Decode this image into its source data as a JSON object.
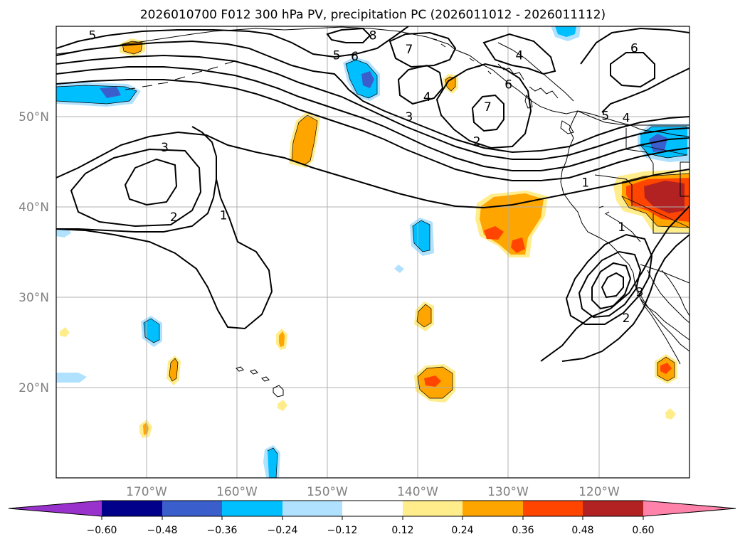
{
  "title": "2026010700 F012 300 hPa PV, precipitation PC (2026011012 - 2026011112)",
  "map": {
    "lon_range": [
      -180,
      -110
    ],
    "lat_range": [
      10,
      60
    ],
    "lon_ticks": [
      {
        "value": -170,
        "label": "170°W"
      },
      {
        "value": -160,
        "label": "160°W"
      },
      {
        "value": -150,
        "label": "150°W"
      },
      {
        "value": -140,
        "label": "140°W"
      },
      {
        "value": -130,
        "label": "130°W"
      },
      {
        "value": -120,
        "label": "120°W"
      }
    ],
    "lat_ticks": [
      {
        "value": 50,
        "label": "50°N"
      },
      {
        "value": 40,
        "label": "40°N"
      },
      {
        "value": 30,
        "label": "30°N"
      },
      {
        "value": 20,
        "label": "20°N"
      }
    ],
    "contour_labels": [
      {
        "text": "5",
        "lon": -176,
        "lat": 59
      },
      {
        "text": "8",
        "lon": -145,
        "lat": 59
      },
      {
        "text": "7",
        "lon": -141,
        "lat": 57.5
      },
      {
        "text": "6",
        "lon": -147,
        "lat": 56.7
      },
      {
        "text": "5",
        "lon": -149,
        "lat": 56.8
      },
      {
        "text": "4",
        "lon": -139,
        "lat": 52.2
      },
      {
        "text": "3",
        "lon": -141,
        "lat": 50
      },
      {
        "text": "2",
        "lon": -133.5,
        "lat": 47.3
      },
      {
        "text": "1",
        "lon": -121.5,
        "lat": 42.7
      },
      {
        "text": "4",
        "lon": -128.8,
        "lat": 56.8
      },
      {
        "text": "6",
        "lon": -130,
        "lat": 53.6
      },
      {
        "text": "7",
        "lon": -132.3,
        "lat": 51.1
      },
      {
        "text": "6",
        "lon": -116.1,
        "lat": 57.6
      },
      {
        "text": "5",
        "lon": -119.3,
        "lat": 50.1
      },
      {
        "text": "4",
        "lon": -117,
        "lat": 49.9
      },
      {
        "text": "3",
        "lon": -168,
        "lat": 46.6
      },
      {
        "text": "2",
        "lon": -167,
        "lat": 38.9
      },
      {
        "text": "1",
        "lon": -161.5,
        "lat": 39.1
      },
      {
        "text": "1",
        "lon": -117.5,
        "lat": 37.8
      },
      {
        "text": "3",
        "lon": -115.5,
        "lat": 30.6
      },
      {
        "text": "2",
        "lon": -117,
        "lat": 27.7
      }
    ]
  },
  "colorbar": {
    "levels": [
      -0.6,
      -0.48,
      -0.36,
      -0.24,
      -0.12,
      0.12,
      0.24,
      0.36,
      0.48,
      0.6
    ],
    "colors": [
      "#9932cc",
      "#00008b",
      "#3a5fcd",
      "#00bfff",
      "#b0e2ff",
      "#ffffff",
      "#ffec8b",
      "#ffa500",
      "#ff4500",
      "#b22222",
      "#ff82ab"
    ],
    "tick_labels": [
      "−0.60",
      "−0.48",
      "−0.36",
      "−0.24",
      "−0.12",
      "0.12",
      "0.24",
      "0.36",
      "0.48",
      "0.60"
    ]
  },
  "chart_data": {
    "type": "map",
    "title": "2026010700 F012 300 hPa PV, precipitation PC (2026011012 - 2026011112)",
    "fields": [
      "300 hPa PV (contours, PVU)",
      "precipitation PC (shaded)"
    ],
    "pv_contour_levels": [
      1,
      2,
      3,
      4,
      5,
      6,
      7,
      8
    ],
    "precip_pc_levels": [
      -0.6,
      -0.48,
      -0.36,
      -0.24,
      -0.12,
      0.12,
      0.24,
      0.36,
      0.48,
      0.6
    ],
    "extent": {
      "lon": [
        -180,
        -110
      ],
      "lat": [
        10,
        60
      ]
    },
    "features": [
      {
        "name": "positive anomaly",
        "lon": -117,
        "lat": 41,
        "max_level": 0.48
      },
      {
        "name": "positive anomaly",
        "lon": -131,
        "lat": 38,
        "max_level": 0.36
      },
      {
        "name": "positive anomaly",
        "lon": -150.5,
        "lat": 46,
        "max_level": 0.24
      },
      {
        "name": "positive anomaly",
        "lon": -139,
        "lat": 20.5,
        "max_level": 0.36
      },
      {
        "name": "negative anomaly",
        "lon": -116,
        "lat": 47,
        "max_level": -0.36
      },
      {
        "name": "negative anomaly",
        "lon": -146,
        "lat": 53.5,
        "max_level": -0.36
      },
      {
        "name": "negative anomaly",
        "lon": -175,
        "lat": 52.5,
        "max_level": -0.36
      },
      {
        "name": "negative anomaly",
        "lon": -140,
        "lat": 37,
        "max_level": -0.24
      },
      {
        "name": "negative anomaly",
        "lon": -155.5,
        "lat": 13,
        "max_level": -0.24
      }
    ]
  }
}
